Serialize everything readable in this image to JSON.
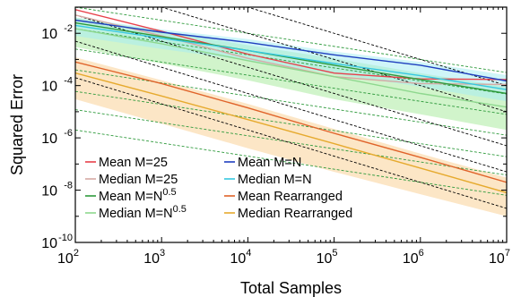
{
  "chart_data": {
    "type": "line",
    "title": "",
    "xlabel": "Total Samples",
    "ylabel": "Squared Error",
    "xscale": "log",
    "yscale": "log",
    "xlim": [
      100,
      10000000
    ],
    "ylim": [
      1e-10,
      0.1
    ],
    "x_ticks": [
      {
        "base": "10",
        "exp": "2",
        "value": 100
      },
      {
        "base": "10",
        "exp": "3",
        "value": 1000
      },
      {
        "base": "10",
        "exp": "4",
        "value": 10000
      },
      {
        "base": "10",
        "exp": "5",
        "value": 100000
      },
      {
        "base": "10",
        "exp": "6",
        "value": 1000000
      },
      {
        "base": "10",
        "exp": "7",
        "value": 10000000
      }
    ],
    "y_ticks": [
      {
        "base": "10",
        "exp": "-2",
        "value": 0.01
      },
      {
        "base": "10",
        "exp": "-4",
        "value": 0.0001
      },
      {
        "base": "10",
        "exp": "-6",
        "value": 1e-06
      },
      {
        "base": "10",
        "exp": "-8",
        "value": 1e-08
      },
      {
        "base": "10",
        "exp": "-10",
        "value": 1e-10
      }
    ],
    "grid": false,
    "legend_position": "bottom-left",
    "series": [
      {
        "name": "Mean M=25",
        "label_main": "Mean M=25",
        "label_sup": "",
        "color": "#e8404a",
        "legend_col": 0,
        "legend_row": 0,
        "band": null,
        "x": [
          100,
          1000,
          10000,
          100000,
          1000000,
          10000000
        ],
        "y": [
          0.08,
          0.012,
          0.0016,
          0.0003,
          0.00018,
          0.00017
        ]
      },
      {
        "name": "Median M=25",
        "label_main": "Median M=25",
        "label_sup": "",
        "color": "#d6a9a4",
        "legend_col": 0,
        "legend_row": 1,
        "band": null,
        "x": [
          100,
          1000,
          10000,
          100000,
          1000000,
          10000000
        ],
        "y": [
          0.05,
          0.008,
          0.0011,
          0.00022,
          0.00012,
          0.00011
        ]
      },
      {
        "name": "Mean M=N^0.5",
        "label_main": "Mean M=N",
        "label_sup": "0.5",
        "color": "#2e9a3c",
        "legend_col": 0,
        "legend_row": 2,
        "band": null,
        "x": [
          100,
          1000,
          10000,
          100000,
          1000000,
          10000000
        ],
        "y": [
          0.025,
          0.0075,
          0.0022,
          0.0006,
          0.00017,
          5e-05
        ]
      },
      {
        "name": "Median M=N^0.5",
        "label_main": "Median M=N",
        "label_sup": "0.5",
        "color": "#8ed88e",
        "legend_col": 0,
        "legend_row": 3,
        "band": {
          "color": "#b2eca8",
          "opacity": 0.6,
          "lower": [
            0.003,
            0.0007,
            0.00016,
            3e-05,
            8e-06,
            2e-06
          ],
          "upper": [
            0.04,
            0.012,
            0.0035,
            0.0011,
            0.0003,
            9e-05
          ]
        },
        "x": [
          100,
          1000,
          10000,
          100000,
          1000000,
          10000000
        ],
        "y": [
          0.015,
          0.004,
          0.0009,
          0.00022,
          5e-05,
          1.5e-05
        ]
      },
      {
        "name": "Mean M=N",
        "label_main": "Mean M=N",
        "label_sup": "",
        "color": "#1f3fbf",
        "legend_col": 1,
        "legend_row": 0,
        "band": null,
        "x": [
          100,
          1000,
          10000,
          100000,
          1000000,
          10000000
        ],
        "y": [
          0.032,
          0.011,
          0.0045,
          0.0015,
          0.0006,
          0.00015
        ]
      },
      {
        "name": "Median M=N",
        "label_main": "Median M=N",
        "label_sup": "",
        "color": "#36c8e0",
        "legend_col": 1,
        "legend_row": 1,
        "band": {
          "color": "#a8ecf2",
          "opacity": 0.55,
          "lower": [
            0.008,
            0.0025,
            0.0009,
            0.00028,
            9e-05,
            2.5e-05
          ],
          "upper": [
            0.04,
            0.014,
            0.006,
            0.002,
            0.0008,
            0.00025
          ]
        },
        "x": [
          100,
          1000,
          10000,
          100000,
          1000000,
          10000000
        ],
        "y": [
          0.02,
          0.0065,
          0.0022,
          0.0007,
          0.00024,
          7e-05
        ]
      },
      {
        "name": "Mean Rearranged",
        "label_main": "Mean Rearranged",
        "label_sup": "",
        "color": "#e0632a",
        "legend_col": 1,
        "legend_row": 2,
        "band": null,
        "x": [
          100,
          1000,
          10000,
          100000,
          1000000,
          10000000
        ],
        "y": [
          0.0008,
          0.00012,
          1.4e-05,
          1.5e-06,
          1.8e-07,
          2e-08
        ]
      },
      {
        "name": "Median Rearranged",
        "label_main": "Median Rearranged",
        "label_sup": "",
        "color": "#e6aa2e",
        "legend_col": 1,
        "legend_row": 3,
        "band": {
          "color": "#fbe0b8",
          "opacity": 0.8,
          "lower": [
            3e-05,
            3.5e-06,
            4e-07,
            5e-08,
            7e-09,
            1e-09
          ],
          "upper": [
            0.0012,
            0.00016,
            2e-05,
            2.2e-06,
            2.5e-07,
            3e-08
          ]
        },
        "x": [
          100,
          1000,
          10000,
          100000,
          1000000,
          10000000
        ],
        "y": [
          0.0003,
          4e-05,
          5e-06,
          6e-07,
          7e-08,
          8e-09
        ]
      }
    ],
    "reference_lines": [
      {
        "color": "#2e9a3c",
        "slope": -0.5,
        "y_at_xmin": 0.1
      },
      {
        "color": "#2e9a3c",
        "slope": -0.5,
        "y_at_xmin": 0.015
      },
      {
        "color": "#2e9a3c",
        "slope": -0.5,
        "y_at_xmin": 0.0025
      },
      {
        "color": "#2e9a3c",
        "slope": -0.5,
        "y_at_xmin": 0.0004
      },
      {
        "color": "#2e9a3c",
        "slope": -0.5,
        "y_at_xmin": 6e-05
      },
      {
        "color": "#2e9a3c",
        "slope": -0.5,
        "y_at_xmin": 1.2e-05
      },
      {
        "color": "#2e9a3c",
        "slope": -0.5,
        "y_at_xmin": 2e-06
      },
      {
        "color": "#000000",
        "slope": -1,
        "y_at_xmin": 10
      },
      {
        "color": "#000000",
        "slope": -1,
        "y_at_xmin": 1
      },
      {
        "color": "#000000",
        "slope": -1,
        "y_at_xmin": 0.05
      },
      {
        "color": "#000000",
        "slope": -1,
        "y_at_xmin": 0.005
      },
      {
        "color": "#000000",
        "slope": -1,
        "y_at_xmin": 0.0002
      }
    ]
  }
}
